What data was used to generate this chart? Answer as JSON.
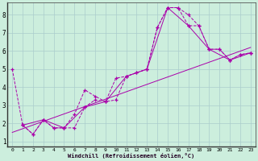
{
  "xlabel": "Windchill (Refroidissement éolien,°C)",
  "bg_color": "#cceedd",
  "grid_color": "#aacccc",
  "line_color": "#aa00aa",
  "xlim": [
    -0.5,
    23.5
  ],
  "ylim": [
    0.7,
    8.7
  ],
  "xticks": [
    0,
    1,
    2,
    3,
    4,
    5,
    6,
    7,
    8,
    9,
    10,
    11,
    12,
    13,
    14,
    15,
    16,
    17,
    18,
    19,
    20,
    21,
    22,
    23
  ],
  "yticks": [
    1,
    2,
    3,
    4,
    5,
    6,
    7,
    8
  ],
  "series": [
    {
      "x": [
        0,
        1,
        2,
        3,
        4,
        5,
        6,
        7,
        8,
        9,
        10,
        11,
        12,
        13,
        14,
        15,
        16,
        17,
        18,
        19,
        20,
        21,
        22,
        23
      ],
      "y": [
        5.0,
        1.9,
        1.4,
        2.2,
        1.75,
        1.75,
        1.75,
        2.9,
        3.3,
        3.2,
        3.3,
        4.6,
        4.8,
        5.0,
        7.3,
        8.4,
        8.4,
        8.0,
        7.4,
        6.1,
        6.1,
        5.5,
        5.8,
        5.9
      ],
      "style": "dashed_marker"
    },
    {
      "x": [
        1,
        2,
        3,
        4,
        5,
        6,
        7,
        8,
        9,
        10,
        11,
        12,
        13,
        14,
        15,
        16,
        17,
        18,
        19,
        20,
        21,
        22,
        23
      ],
      "y": [
        1.9,
        1.4,
        2.2,
        1.75,
        1.75,
        2.5,
        3.85,
        3.5,
        3.2,
        4.5,
        4.6,
        4.8,
        5.0,
        7.3,
        8.4,
        8.4,
        7.4,
        7.4,
        6.1,
        6.1,
        5.5,
        5.8,
        5.9
      ],
      "style": "dashed_marker"
    },
    {
      "x": [
        1,
        3,
        5,
        7,
        9,
        11,
        13,
        15,
        17,
        19,
        21,
        23
      ],
      "y": [
        1.9,
        2.2,
        1.75,
        2.9,
        3.2,
        4.6,
        5.0,
        8.4,
        7.4,
        6.1,
        5.5,
        5.9
      ],
      "style": "solid_marker"
    },
    {
      "x": [
        0,
        23
      ],
      "y": [
        1.5,
        6.2
      ],
      "style": "solid_only"
    }
  ]
}
